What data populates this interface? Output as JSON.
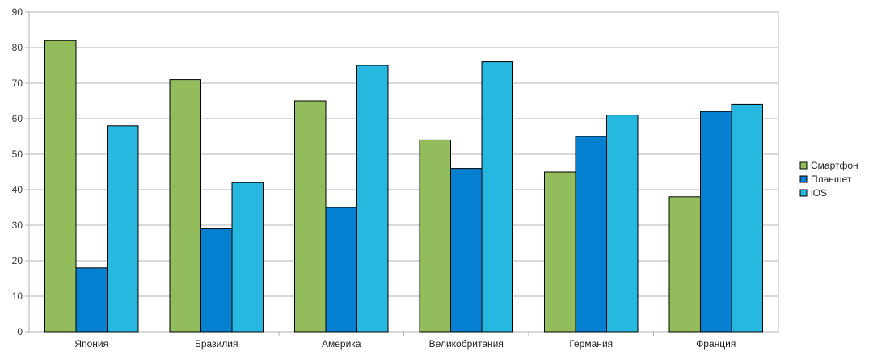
{
  "chart_data": {
    "type": "bar",
    "categories": [
      "Япония",
      "Бразилия",
      "Америка",
      "Великобритания",
      "Германия",
      "Франция"
    ],
    "series": [
      {
        "name": "Смартфон",
        "values": [
          82,
          71,
          65,
          54,
          45,
          38
        ],
        "color": "#93bd5d"
      },
      {
        "name": "Планшет",
        "values": [
          18,
          29,
          35,
          46,
          55,
          62
        ],
        "color": "#0580d0"
      },
      {
        "name": "iOS",
        "values": [
          58,
          42,
          75,
          76,
          61,
          64
        ],
        "color": "#26b8de"
      }
    ],
    "ylim": [
      0,
      90
    ],
    "yticks": [
      0,
      10,
      20,
      30,
      40,
      50,
      60,
      70,
      80,
      90
    ],
    "grid": true,
    "legend_position": "right",
    "title": "",
    "xlabel": "",
    "ylabel": ""
  }
}
